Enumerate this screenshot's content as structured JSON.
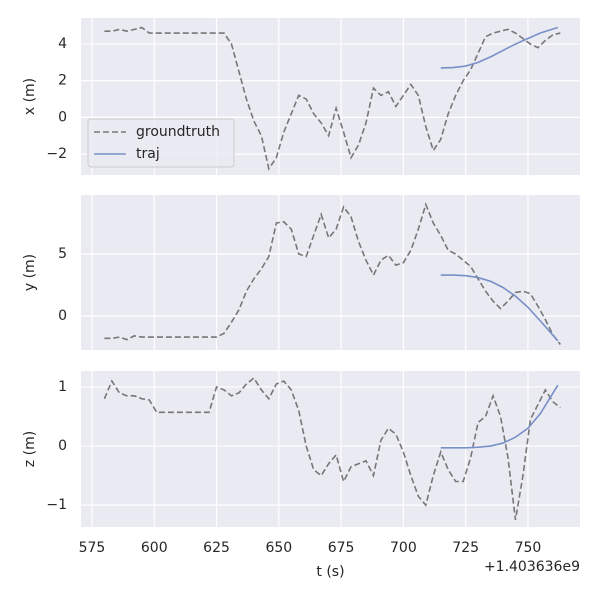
{
  "chart_data": [
    {
      "type": "line",
      "ylabel": "x (m)",
      "xlim": [
        570.6,
        770.9
      ],
      "xticks": [
        575,
        600,
        625,
        650,
        675,
        700,
        725,
        750
      ],
      "ylim": [
        -3.14,
        5.42
      ],
      "yticks": [
        {
          "value": -2,
          "label": "−2"
        },
        0,
        2,
        4
      ],
      "grid": true,
      "legend": "lower left",
      "series": [
        {
          "name": "groundtruth",
          "color": "#777777",
          "dash": true,
          "x": [
            580,
            583,
            586,
            589,
            592,
            595,
            598,
            601,
            604,
            607,
            610,
            613,
            616,
            619,
            622,
            625,
            628,
            631,
            634,
            637,
            640,
            643,
            646,
            649,
            652,
            655,
            658,
            661,
            664,
            667,
            670,
            673,
            676,
            679,
            682,
            685,
            688,
            691,
            694,
            697,
            700,
            703,
            706,
            709,
            712,
            715,
            718,
            721,
            724,
            727,
            730,
            733,
            736,
            739,
            742,
            745,
            748,
            751,
            754,
            757,
            760,
            763
          ],
          "values": [
            4.7,
            4.7,
            4.8,
            4.7,
            4.8,
            4.9,
            4.6,
            4.6,
            4.6,
            4.6,
            4.6,
            4.6,
            4.6,
            4.6,
            4.6,
            4.6,
            4.6,
            4.0,
            2.5,
            1.0,
            -0.2,
            -1.0,
            -2.8,
            -2.2,
            -0.8,
            0.2,
            1.2,
            1.0,
            0.2,
            -0.3,
            -1.0,
            0.5,
            -0.8,
            -2.2,
            -1.5,
            -0.3,
            1.6,
            1.2,
            1.4,
            0.6,
            1.2,
            1.8,
            1.2,
            -0.5,
            -1.8,
            -1.2,
            0.2,
            1.2,
            2.0,
            2.6,
            3.5,
            4.4,
            4.6,
            4.7,
            4.8,
            4.6,
            4.3,
            4.0,
            3.8,
            4.2,
            4.5,
            4.6
          ]
        },
        {
          "name": "traj",
          "color": "#7890c8",
          "dash": false,
          "x": [
            715,
            720,
            725,
            730,
            735,
            740,
            745,
            750,
            755,
            762
          ],
          "values": [
            2.7,
            2.72,
            2.8,
            3.0,
            3.3,
            3.65,
            4.0,
            4.3,
            4.6,
            4.9
          ]
        }
      ]
    },
    {
      "type": "line",
      "ylabel": "y (m)",
      "xlim": [
        570.6,
        770.9
      ],
      "xticks": [
        575,
        600,
        625,
        650,
        675,
        700,
        725,
        750
      ],
      "ylim": [
        -2.74,
        9.76
      ],
      "yticks": [
        0,
        5
      ],
      "grid": true,
      "series": [
        {
          "color": "#777777",
          "dash": true,
          "x": [
            580,
            583,
            586,
            589,
            592,
            595,
            598,
            601,
            604,
            607,
            610,
            613,
            616,
            619,
            622,
            625,
            628,
            631,
            634,
            637,
            640,
            643,
            646,
            649,
            652,
            655,
            658,
            661,
            664,
            667,
            670,
            673,
            676,
            679,
            682,
            685,
            688,
            691,
            694,
            697,
            700,
            703,
            706,
            709,
            712,
            715,
            718,
            721,
            724,
            727,
            730,
            733,
            736,
            739,
            742,
            745,
            748,
            751,
            754,
            757,
            760,
            763
          ],
          "values": [
            -1.8,
            -1.8,
            -1.7,
            -1.9,
            -1.6,
            -1.7,
            -1.7,
            -1.7,
            -1.7,
            -1.7,
            -1.7,
            -1.7,
            -1.7,
            -1.7,
            -1.7,
            -1.7,
            -1.4,
            -0.5,
            0.5,
            2.0,
            3.0,
            3.8,
            4.8,
            7.5,
            7.6,
            7.0,
            5.0,
            4.8,
            6.5,
            8.2,
            6.3,
            7.0,
            8.8,
            8.0,
            6.0,
            4.5,
            3.3,
            4.5,
            4.9,
            4.1,
            4.3,
            5.3,
            7.0,
            9.0,
            7.5,
            6.5,
            5.3,
            5.0,
            4.5,
            4.0,
            3.0,
            2.0,
            1.2,
            0.6,
            1.2,
            1.9,
            2.0,
            1.8,
            0.8,
            -0.3,
            -1.5,
            -2.3
          ]
        },
        {
          "color": "#7890c8",
          "dash": false,
          "x": [
            715,
            720,
            725,
            730,
            735,
            740,
            745,
            750,
            755,
            762
          ],
          "values": [
            3.3,
            3.3,
            3.25,
            3.1,
            2.8,
            2.3,
            1.6,
            0.7,
            -0.4,
            -2.0
          ]
        }
      ]
    },
    {
      "type": "line",
      "ylabel": "z (m)",
      "xlabel": "t (s)",
      "x_offset_label": "+1.403636e9",
      "xlim": [
        570.6,
        770.9
      ],
      "xticks": [
        575,
        600,
        625,
        650,
        675,
        700,
        725,
        750
      ],
      "ylim": [
        -1.37,
        1.27
      ],
      "yticks": [
        {
          "value": -1,
          "label": "−1"
        },
        0,
        1
      ],
      "grid": true,
      "series": [
        {
          "color": "#777777",
          "dash": true,
          "x": [
            580,
            583,
            586,
            589,
            592,
            595,
            598,
            601,
            604,
            607,
            610,
            613,
            616,
            619,
            622,
            625,
            628,
            631,
            634,
            637,
            640,
            643,
            646,
            649,
            652,
            655,
            658,
            661,
            664,
            667,
            670,
            673,
            676,
            679,
            682,
            685,
            688,
            691,
            694,
            697,
            700,
            703,
            706,
            709,
            712,
            715,
            718,
            721,
            724,
            727,
            730,
            733,
            736,
            739,
            742,
            745,
            748,
            751,
            754,
            757,
            760,
            763
          ],
          "values": [
            0.8,
            1.1,
            0.9,
            0.85,
            0.85,
            0.8,
            0.78,
            0.57,
            0.57,
            0.57,
            0.57,
            0.57,
            0.57,
            0.57,
            0.57,
            1.0,
            0.95,
            0.85,
            0.9,
            1.05,
            1.15,
            0.95,
            0.8,
            1.05,
            1.1,
            0.95,
            0.6,
            0.0,
            -0.4,
            -0.5,
            -0.3,
            -0.15,
            -0.6,
            -0.35,
            -0.3,
            -0.25,
            -0.5,
            0.1,
            0.3,
            0.2,
            -0.1,
            -0.5,
            -0.85,
            -1.0,
            -0.5,
            -0.1,
            -0.4,
            -0.6,
            -0.6,
            -0.2,
            0.4,
            0.5,
            0.85,
            0.5,
            -0.2,
            -1.25,
            -0.5,
            0.45,
            0.7,
            0.95,
            0.75,
            0.65
          ]
        },
        {
          "color": "#7890c8",
          "dash": false,
          "x": [
            715,
            720,
            725,
            730,
            735,
            740,
            745,
            750,
            755,
            762
          ],
          "values": [
            -0.03,
            -0.03,
            -0.03,
            -0.02,
            0.0,
            0.05,
            0.15,
            0.3,
            0.55,
            1.03
          ]
        }
      ]
    }
  ]
}
